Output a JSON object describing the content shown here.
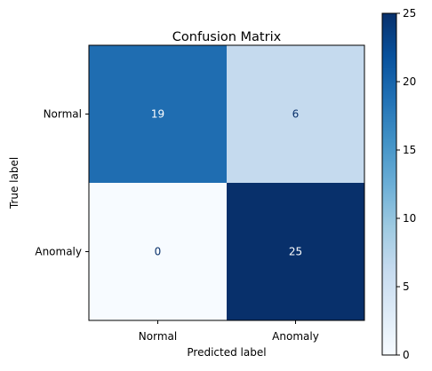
{
  "chart_data": {
    "type": "heatmap",
    "title": "Confusion Matrix",
    "xlabel": "Predicted label",
    "ylabel": "True label",
    "x_categories": [
      "Normal",
      "Anomaly"
    ],
    "y_categories": [
      "Normal",
      "Anomaly"
    ],
    "values": [
      [
        19,
        6
      ],
      [
        0,
        25
      ]
    ],
    "colormap": "Blues",
    "value_range": [
      0,
      25
    ],
    "colorbar": {
      "ticks": [
        "0",
        "5",
        "10",
        "15",
        "20",
        "25"
      ],
      "tick_values": [
        0,
        5,
        10,
        15,
        20,
        25
      ]
    },
    "cell_colors": [
      [
        "#1f6db1",
        "#c5daee"
      ],
      [
        "#f7fbff",
        "#08306b"
      ]
    ],
    "label_colors": [
      [
        "#ffffff",
        "#08306b"
      ],
      [
        "#08306b",
        "#ffffff"
      ]
    ],
    "grid": false
  }
}
